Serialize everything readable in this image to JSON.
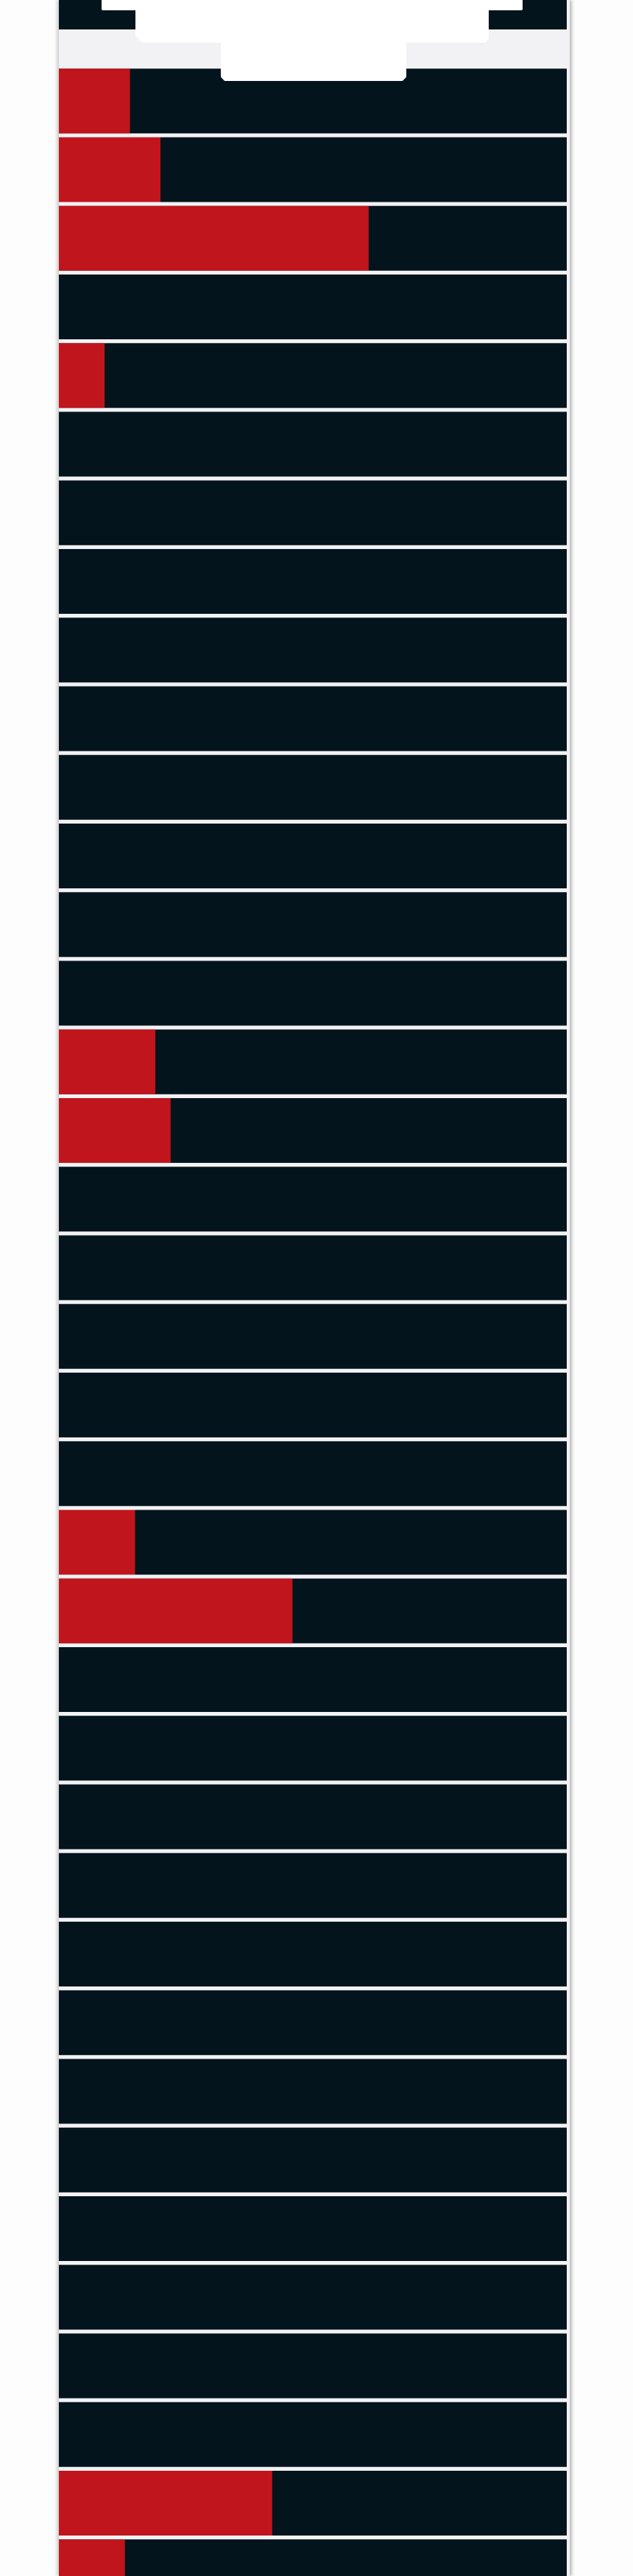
{
  "colors": {
    "background": "#fdfdfd",
    "track": "#f2f2f4",
    "bar_background": "#03141c",
    "bar_fill": "#c0151c",
    "emblem": "#ffffff"
  },
  "icons": {
    "emblem": "castle-emblem-icon"
  },
  "chart_data": {
    "type": "bar",
    "orientation": "horizontal",
    "xlim": [
      0,
      100
    ],
    "grid": false,
    "legend": "none",
    "values": [
      0,
      14,
      20,
      61,
      0,
      9,
      0,
      0,
      0,
      0,
      0,
      0,
      0,
      0,
      0,
      19,
      22,
      0,
      0,
      0,
      0,
      0,
      15,
      46,
      0,
      0,
      0,
      0,
      0,
      0,
      0,
      0,
      0,
      0,
      0,
      0,
      42,
      13
    ]
  }
}
